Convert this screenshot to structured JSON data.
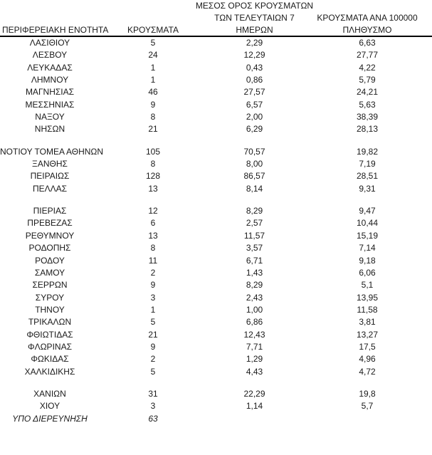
{
  "table": {
    "headers": {
      "col1": "ΠΕΡΙΦΕΡΕΙΑΚΗ ΕΝΟΤΗΤΑ",
      "col2": "ΚΡΟΥΣΜΑΤΑ",
      "col3_lines": [
        "ΜΕΣΟΣ ΟΡΟΣ ΚΡΟΥΣΜΑΤΩΝ",
        "ΤΩΝ ΤΕΛΕΥΤΑΙΩΝ 7",
        "ΗΜΕΡΩΝ"
      ],
      "col4_lines": [
        "ΚΡΟΥΣΜΑΤΑ ΑΝΑ 100000",
        "ΠΛΗΘΥΣΜΟ"
      ]
    },
    "rows": [
      {
        "name": "ΛΑΣΙΘΙΟΥ",
        "cases": "5",
        "avg7": "2,29",
        "per100k": "6,63"
      },
      {
        "name": "ΛΕΣΒΟΥ",
        "cases": "24",
        "avg7": "12,29",
        "per100k": "27,77"
      },
      {
        "name": "ΛΕΥΚΑΔΑΣ",
        "cases": "1",
        "avg7": "0,43",
        "per100k": "4,22"
      },
      {
        "name": "ΛΗΜΝΟΥ",
        "cases": "1",
        "avg7": "0,86",
        "per100k": "5,79"
      },
      {
        "name": "ΜΑΓΝΗΣΙΑΣ",
        "cases": "46",
        "avg7": "27,57",
        "per100k": "24,21"
      },
      {
        "name": "ΜΕΣΣΗΝΙΑΣ",
        "cases": "9",
        "avg7": "6,57",
        "per100k": "5,63"
      },
      {
        "name": "ΝΑΞΟΥ",
        "cases": "8",
        "avg7": "2,00",
        "per100k": "38,39"
      },
      {
        "name": "ΝΗΣΩΝ",
        "cases": "21",
        "avg7": "6,29",
        "per100k": "28,13"
      },
      {
        "spacer": true
      },
      {
        "name": "ΝΟΤΙΟΥ ΤΟΜΕΑ ΑΘΗΝΩΝ",
        "cases": "105",
        "avg7": "70,57",
        "per100k": "19,82"
      },
      {
        "name": "ΞΑΝΘΗΣ",
        "cases": "8",
        "avg7": "8,00",
        "per100k": "7,19"
      },
      {
        "name": "ΠΕΙΡΑΙΩΣ",
        "cases": "128",
        "avg7": "86,57",
        "per100k": "28,51"
      },
      {
        "name": "ΠΕΛΛΑΣ",
        "cases": "13",
        "avg7": "8,14",
        "per100k": "9,31"
      },
      {
        "spacer": true
      },
      {
        "name": "ΠΙΕΡΙΑΣ",
        "cases": "12",
        "avg7": "8,29",
        "per100k": "9,47"
      },
      {
        "name": "ΠΡΕΒΕΖΑΣ",
        "cases": "6",
        "avg7": "2,57",
        "per100k": "10,44"
      },
      {
        "name": "ΡΕΘΥΜΝΟΥ",
        "cases": "13",
        "avg7": "11,57",
        "per100k": "15,19"
      },
      {
        "name": "ΡΟΔΟΠΗΣ",
        "cases": "8",
        "avg7": "3,57",
        "per100k": "7,14"
      },
      {
        "name": "ΡΟΔΟΥ",
        "cases": "11",
        "avg7": "6,71",
        "per100k": "9,18"
      },
      {
        "name": "ΣΑΜΟΥ",
        "cases": "2",
        "avg7": "1,43",
        "per100k": "6,06"
      },
      {
        "name": "ΣΕΡΡΩΝ",
        "cases": "9",
        "avg7": "8,29",
        "per100k": "5,1"
      },
      {
        "name": "ΣΥΡΟΥ",
        "cases": "3",
        "avg7": "2,43",
        "per100k": "13,95"
      },
      {
        "name": "ΤΗΝΟΥ",
        "cases": "1",
        "avg7": "1,00",
        "per100k": "11,58"
      },
      {
        "name": "ΤΡΙΚΑΛΩΝ",
        "cases": "5",
        "avg7": "6,86",
        "per100k": "3,81"
      },
      {
        "name": "ΦΘΙΩΤΙΔΑΣ",
        "cases": "21",
        "avg7": "12,43",
        "per100k": "13,27"
      },
      {
        "name": "ΦΛΩΡΙΝΑΣ",
        "cases": "9",
        "avg7": "7,71",
        "per100k": "17,5"
      },
      {
        "name": "ΦΩΚΙΔΑΣ",
        "cases": "2",
        "avg7": "1,29",
        "per100k": "4,96"
      },
      {
        "name": "ΧΑΛΚΙΔΙΚΗΣ",
        "cases": "5",
        "avg7": "4,43",
        "per100k": "4,72"
      },
      {
        "spacer": true
      },
      {
        "name": "ΧΑΝΙΩΝ",
        "cases": "31",
        "avg7": "22,29",
        "per100k": "19,8"
      },
      {
        "name": "ΧΙΟΥ",
        "cases": "3",
        "avg7": "1,14",
        "per100k": "5,7"
      },
      {
        "name": "ΥΠΟ ΔΙΕΡΕΥΝΗΣΗ",
        "cases": "63",
        "avg7": "",
        "per100k": "",
        "italic": true
      }
    ]
  },
  "colors": {
    "text": "#1a1a1a",
    "rule": "#000000",
    "background": "#ffffff"
  }
}
